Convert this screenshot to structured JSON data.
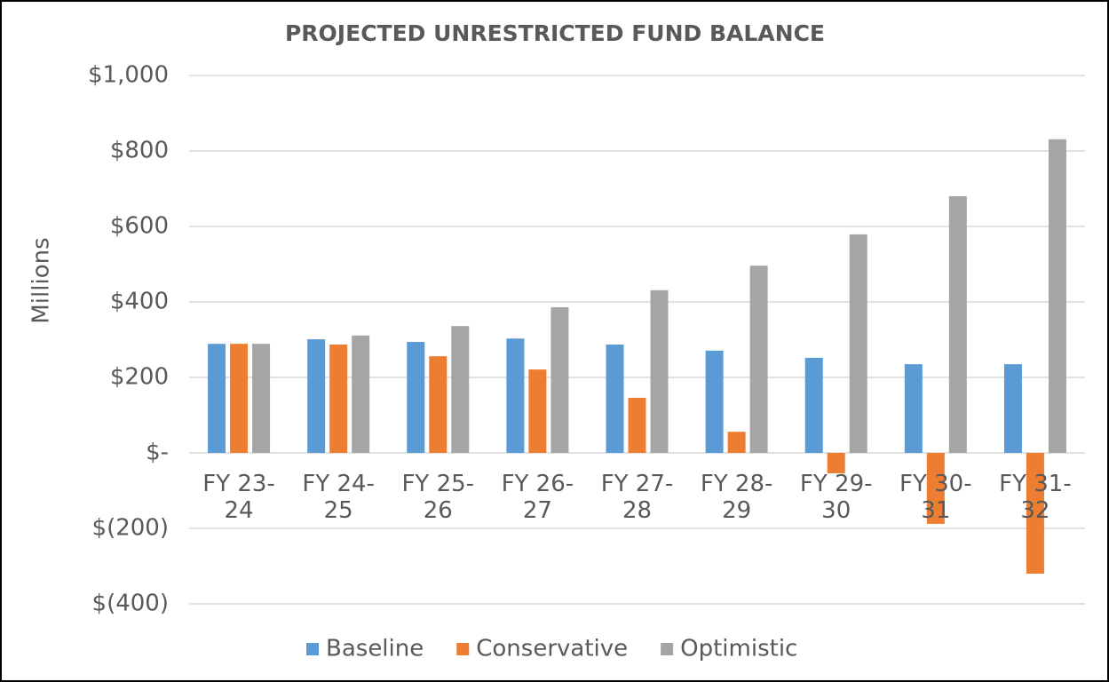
{
  "chart_data": {
    "type": "bar",
    "title": "PROJECTED UNRESTRICTED FUND BALANCE",
    "y_label": "Millions",
    "categories": [
      "FY 23-24",
      "FY 24-25",
      "FY 25-26",
      "FY 26-27",
      "FY 27-28",
      "FY 28-29",
      "FY 29-30",
      "FY 30-31",
      "FY 31-32"
    ],
    "series": [
      {
        "name": "Baseline",
        "color": "#5b9bd5",
        "values": [
          289,
          301,
          294,
          303,
          287,
          271,
          252,
          235,
          235
        ]
      },
      {
        "name": "Conservative",
        "color": "#ed7d31",
        "values": [
          289,
          287,
          256,
          221,
          146,
          56,
          -54,
          -188,
          -320
        ]
      },
      {
        "name": "Optimistic",
        "color": "#a5a5a5",
        "values": [
          289,
          311,
          336,
          386,
          431,
          496,
          579,
          680,
          831
        ]
      }
    ],
    "ylim": [
      -400,
      1000
    ],
    "yticks": [
      {
        "value": -400,
        "label": "$(400)"
      },
      {
        "value": -200,
        "label": "$(200)"
      },
      {
        "value": 0,
        "label": "$-"
      },
      {
        "value": 200,
        "label": "$200"
      },
      {
        "value": 400,
        "label": "$400"
      },
      {
        "value": 600,
        "label": "$600"
      },
      {
        "value": 800,
        "label": "$800"
      },
      {
        "value": 1000,
        "label": "$1,000"
      }
    ],
    "grid": true,
    "legend": "bottom"
  }
}
